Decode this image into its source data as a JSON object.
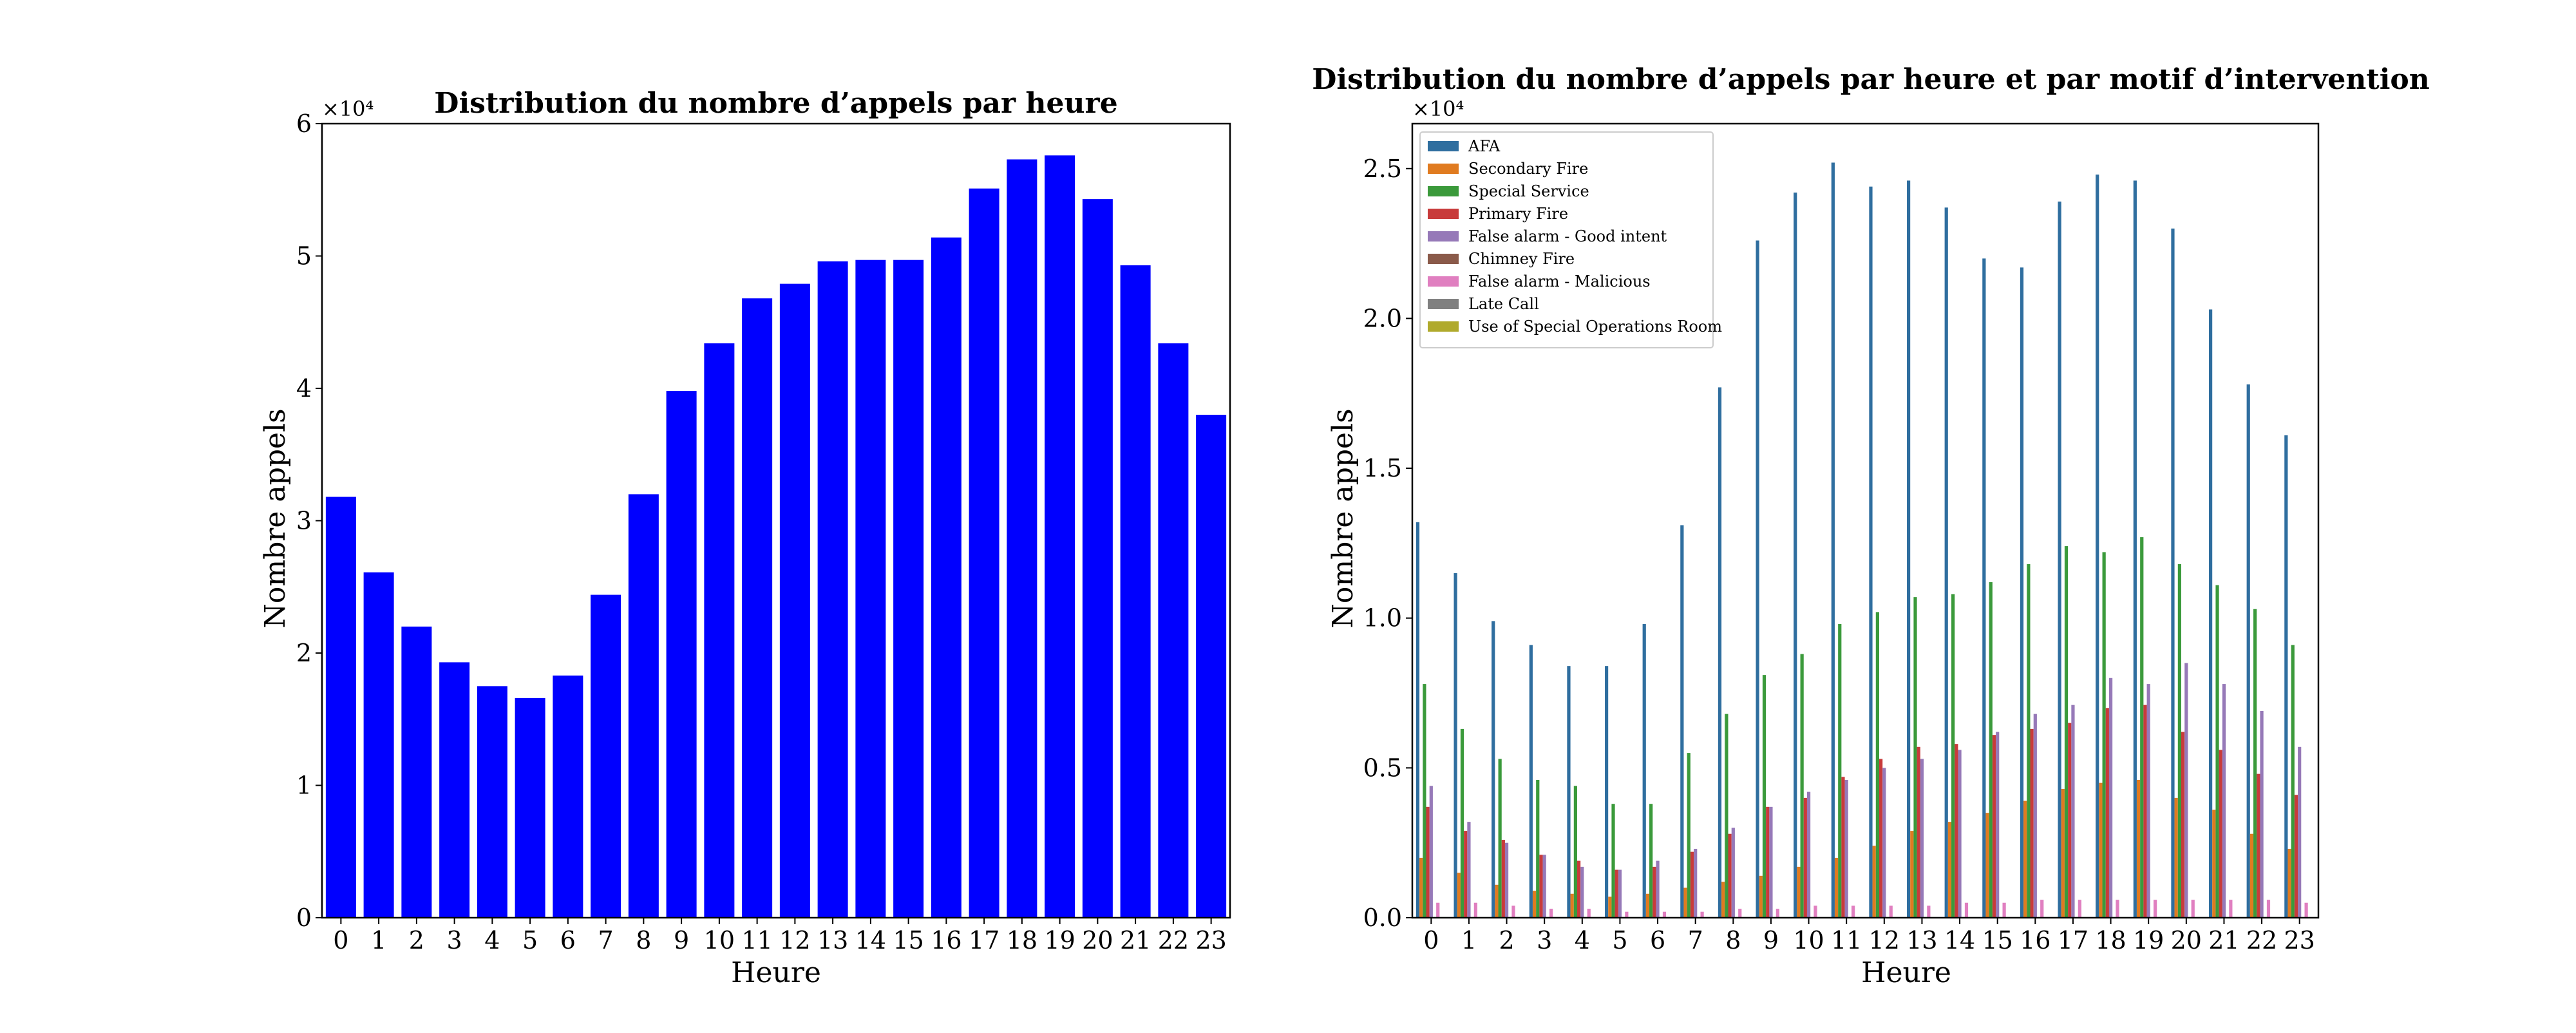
{
  "chart_data": [
    {
      "type": "bar",
      "title": "Distribution du nombre d’appels par heure",
      "xlabel": "Heure",
      "ylabel": "Nombre appels",
      "y_multiplier_label": "×10⁴",
      "ylim": [
        0,
        60000
      ],
      "yticks": [
        0,
        10000,
        20000,
        30000,
        40000,
        50000,
        60000
      ],
      "ytick_labels": [
        "0",
        "1",
        "2",
        "3",
        "4",
        "5",
        "6"
      ],
      "categories": [
        "0",
        "1",
        "2",
        "3",
        "4",
        "5",
        "6",
        "7",
        "8",
        "9",
        "10",
        "11",
        "12",
        "13",
        "14",
        "15",
        "16",
        "17",
        "18",
        "19",
        "20",
        "21",
        "22",
        "23"
      ],
      "values": [
        31800,
        26100,
        22000,
        19300,
        17500,
        16600,
        18300,
        24400,
        32000,
        39800,
        43400,
        46800,
        47900,
        49600,
        49700,
        49700,
        51400,
        55100,
        57300,
        57600,
        54300,
        49300,
        43400,
        38000
      ],
      "color": "#0000ff"
    },
    {
      "type": "bar",
      "title": "Distribution du nombre d’appels par heure et par motif d’intervention",
      "xlabel": "Heure",
      "ylabel": "Nombre appels",
      "y_multiplier_label": "×10⁴",
      "ylim": [
        0,
        26500
      ],
      "yticks": [
        0,
        5000,
        10000,
        15000,
        20000,
        25000
      ],
      "ytick_labels": [
        "0.0",
        "0.5",
        "1.0",
        "1.5",
        "2.0",
        "2.5"
      ],
      "categories": [
        "0",
        "1",
        "2",
        "3",
        "4",
        "5",
        "6",
        "7",
        "8",
        "9",
        "10",
        "11",
        "12",
        "13",
        "14",
        "15",
        "16",
        "17",
        "18",
        "19",
        "20",
        "21",
        "22",
        "23"
      ],
      "legend_position": "upper-left",
      "series": [
        {
          "name": "AFA",
          "color": "#2f6e9f",
          "values": [
            13200,
            11500,
            9900,
            9100,
            8400,
            8400,
            9800,
            13100,
            17700,
            22600,
            24200,
            25200,
            24400,
            24600,
            23700,
            22000,
            21700,
            23900,
            24800,
            24600,
            23000,
            20300,
            17800,
            16100
          ]
        },
        {
          "name": "Secondary Fire",
          "color": "#e07b20",
          "values": [
            2000,
            1500,
            1100,
            900,
            800,
            700,
            800,
            1000,
            1200,
            1400,
            1700,
            2000,
            2400,
            2900,
            3200,
            3500,
            3900,
            4300,
            4500,
            4600,
            4000,
            3600,
            2800,
            2300
          ]
        },
        {
          "name": "Special Service",
          "color": "#3b9a3b",
          "values": [
            7800,
            6300,
            5300,
            4600,
            4400,
            3800,
            3800,
            5500,
            6800,
            8100,
            8800,
            9800,
            10200,
            10700,
            10800,
            11200,
            11800,
            12400,
            12200,
            12700,
            11800,
            11100,
            10300,
            9100
          ]
        },
        {
          "name": "Primary Fire",
          "color": "#c83b3b",
          "values": [
            3700,
            2900,
            2600,
            2100,
            1900,
            1600,
            1700,
            2200,
            2800,
            3700,
            4000,
            4700,
            5300,
            5700,
            5800,
            6100,
            6300,
            6500,
            7000,
            7100,
            6200,
            5600,
            4800,
            4100
          ]
        },
        {
          "name": "False alarm - Good intent",
          "color": "#9679b8",
          "values": [
            4400,
            3200,
            2500,
            2100,
            1700,
            1600,
            1900,
            2300,
            3000,
            3700,
            4200,
            4600,
            5000,
            5300,
            5600,
            6200,
            6800,
            7100,
            8000,
            7800,
            8500,
            7800,
            6900,
            5700
          ]
        },
        {
          "name": "Chimney Fire",
          "color": "#8a5a4a",
          "values": [
            0,
            0,
            0,
            0,
            0,
            0,
            0,
            0,
            0,
            0,
            0,
            0,
            0,
            0,
            0,
            0,
            0,
            0,
            0,
            0,
            0,
            0,
            0,
            0
          ]
        },
        {
          "name": "False alarm - Malicious",
          "color": "#e07fc0",
          "values": [
            500,
            500,
            400,
            300,
            300,
            200,
            200,
            200,
            300,
            300,
            400,
            400,
            400,
            400,
            500,
            500,
            600,
            600,
            600,
            600,
            600,
            600,
            600,
            500
          ]
        },
        {
          "name": "Late Call",
          "color": "#808080",
          "values": [
            0,
            0,
            0,
            0,
            0,
            0,
            0,
            0,
            0,
            0,
            0,
            0,
            0,
            0,
            0,
            0,
            0,
            0,
            0,
            0,
            0,
            0,
            0,
            0
          ]
        },
        {
          "name": "Use of Special Operations Room",
          "color": "#b0aa2c",
          "values": [
            0,
            0,
            0,
            0,
            0,
            0,
            0,
            0,
            0,
            0,
            0,
            0,
            0,
            0,
            0,
            0,
            0,
            0,
            0,
            0,
            0,
            0,
            0,
            0
          ]
        }
      ]
    }
  ]
}
